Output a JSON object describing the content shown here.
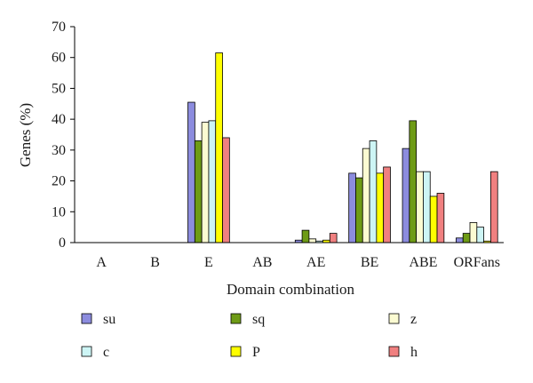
{
  "chart_data": {
    "type": "bar",
    "xlabel": "Domain combination",
    "ylabel": "Genes (%)",
    "ylim": [
      0,
      70
    ],
    "yticks": [
      0,
      10,
      20,
      30,
      40,
      50,
      60,
      70
    ],
    "grid": false,
    "legend_position": "bottom",
    "categories": [
      "A",
      "B",
      "E",
      "AB",
      "AE",
      "BE",
      "ABE",
      "ORFans"
    ],
    "series": [
      {
        "name": "su",
        "color": "#8c8cde",
        "values": [
          0,
          0,
          45.5,
          0,
          0.8,
          22.5,
          30.5,
          1.5
        ]
      },
      {
        "name": "sq",
        "color": "#6e9b16",
        "values": [
          0,
          0,
          33,
          0,
          4,
          21,
          39.5,
          3
        ]
      },
      {
        "name": "z",
        "color": "#fbfbd2",
        "values": [
          0,
          0,
          39,
          0,
          1.2,
          30.5,
          23,
          6.5
        ]
      },
      {
        "name": "c",
        "color": "#cdf5f5",
        "values": [
          0,
          0,
          39.5,
          0,
          0.5,
          33,
          23,
          5
        ]
      },
      {
        "name": "P",
        "color": "#ffff00",
        "values": [
          0,
          0,
          61.5,
          0,
          0.8,
          22.5,
          15,
          0.5
        ]
      },
      {
        "name": "h",
        "color": "#f08080",
        "values": [
          0,
          0,
          34,
          0,
          3,
          24.5,
          16,
          23
        ]
      }
    ]
  }
}
